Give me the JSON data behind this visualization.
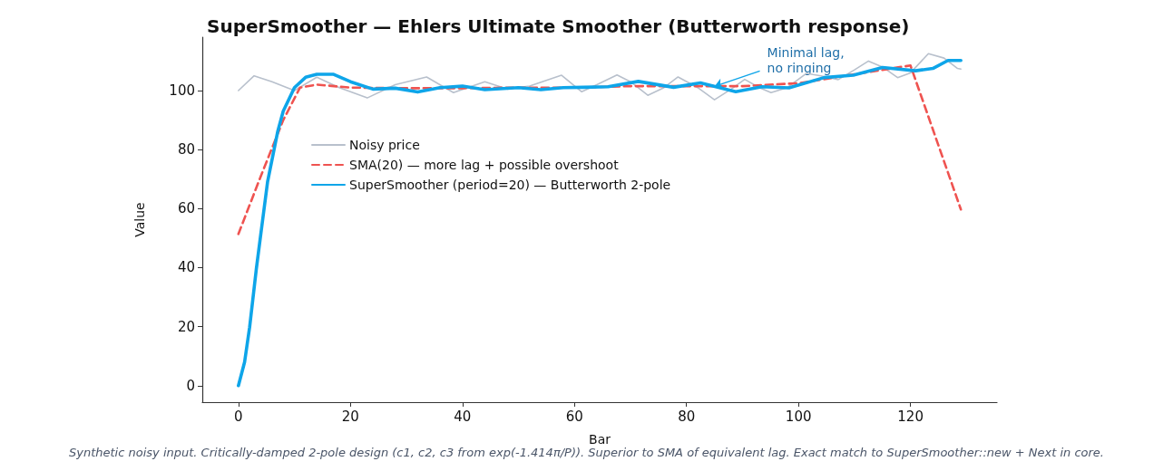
{
  "chart_data": {
    "type": "line",
    "title": "SuperSmoother — Ehlers Ultimate Smoother (Butterworth response)",
    "xlabel": "Bar",
    "ylabel": "Value",
    "xlim": [
      -6.45,
      135.45
    ],
    "xticks": [
      0,
      20,
      40,
      60,
      80,
      100,
      120
    ],
    "ylim": [
      -5.6,
      118.1
    ],
    "yticks": [
      0,
      20,
      40,
      60,
      80,
      100
    ],
    "grid": false,
    "legend": "top left",
    "marker": "none",
    "series": [
      {
        "name": "Noisy price",
        "color": "#b8c0cc",
        "line_style": "solid",
        "x": [
          0,
          2.8,
          6,
          10,
          14,
          18,
          23,
          28,
          33.6,
          38.4,
          44,
          48,
          52,
          57.7,
          61.3,
          64,
          67.6,
          70,
          73.1,
          76,
          78.5,
          82,
          85,
          88,
          90.4,
          93,
          95.1,
          98,
          101.4,
          104,
          107.1,
          110,
          112.5,
          115,
          117.7,
          120,
          123.2,
          126,
          128.4,
          129
        ],
        "values": [
          100,
          105,
          103,
          100,
          104.5,
          101,
          97.5,
          102,
          104.6,
          99.3,
          103,
          100.5,
          101.5,
          105.2,
          99.6,
          102,
          105.3,
          103,
          98.4,
          101,
          104.6,
          101,
          96.9,
          100.5,
          103.8,
          101,
          99.3,
          101,
          105.8,
          105,
          103.7,
          107,
          110,
          108,
          104.4,
          106,
          112.5,
          111,
          107.5,
          107.3
        ]
      },
      {
        "name": "SMA(20) — more lag + possible overshoot",
        "color": "#ef5350",
        "line_style": "dashed",
        "x": [
          0,
          4,
          8,
          11,
          14,
          20,
          30,
          40,
          50,
          60,
          70,
          80,
          90,
          100,
          110,
          120,
          129
        ],
        "values": [
          51.4,
          71,
          90,
          101,
          102,
          101,
          100.8,
          100.8,
          101,
          101,
          101.5,
          101.5,
          101.5,
          102.5,
          105.5,
          108.5,
          59.7
        ]
      },
      {
        "name": "SuperSmoother (period=20) — Butterworth 2-pole",
        "color": "#0ea5e9",
        "line_style": "solid",
        "x": [
          0,
          1.1,
          2,
          3.2,
          4,
          5.2,
          7,
          8,
          10,
          12,
          14,
          17,
          20,
          24,
          28,
          32,
          36,
          40,
          44,
          50,
          54,
          58,
          61.6,
          66,
          71.4,
          77.7,
          82.5,
          88.8,
          93.5,
          98.3,
          104.6,
          109.8,
          115,
          120.9,
          124,
          126.7,
          129
        ],
        "values": [
          0,
          8,
          19.8,
          39.6,
          51.4,
          69,
          86,
          93,
          101,
          104.5,
          105.5,
          105.5,
          103,
          100.5,
          100.8,
          99.5,
          101,
          101.5,
          100.3,
          101,
          100.3,
          101,
          101.1,
          101.3,
          103.1,
          101.1,
          102.6,
          99.6,
          101.3,
          100.9,
          104.4,
          105.2,
          107.8,
          106.7,
          107.5,
          110.2,
          110.2
        ]
      }
    ],
    "annotations": [
      {
        "text": "Minimal lag,\nno ringing",
        "x": 85,
        "y": 101.4
      },
      "Synthetic noisy input. Critically-damped 2-pole design (c1, c2, c3 from exp(-1.414π/P)). Superior to SMA of equivalent lag. Exact match to SuperSmoother::new + Next in core."
    ]
  }
}
